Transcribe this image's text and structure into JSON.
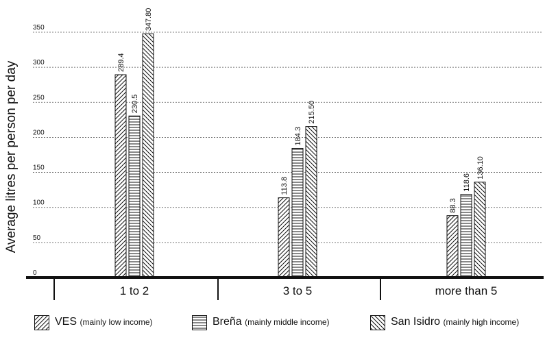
{
  "chart_data": {
    "type": "bar",
    "ylabel": "Average litres per person per day",
    "categories": [
      "1 to 2",
      "3 to 5",
      "more than 5"
    ],
    "series": [
      {
        "name": "VES",
        "note": "(mainly low income)",
        "values": [
          289.4,
          113.8,
          88.3
        ],
        "labels": [
          "289.4",
          "113.8",
          "88.3"
        ],
        "pattern": "diagonal-forward"
      },
      {
        "name": "Breña",
        "note": "(mainly middle income)",
        "values": [
          230.5,
          184.3,
          118.6
        ],
        "labels": [
          "230.5",
          "184.3",
          "118.6"
        ],
        "pattern": "horizontal"
      },
      {
        "name": "San Isidro",
        "note": "(mainly high income)",
        "values": [
          347.8,
          215.5,
          136.1
        ],
        "labels": [
          "347.80",
          "215.50",
          "136.10"
        ],
        "pattern": "diagonal-back"
      }
    ],
    "ylim": [
      0,
      350
    ],
    "yticks": [
      0,
      50,
      100,
      150,
      200,
      250,
      300,
      350
    ],
    "grid": "horizontal dotted",
    "legend_position": "bottom"
  }
}
